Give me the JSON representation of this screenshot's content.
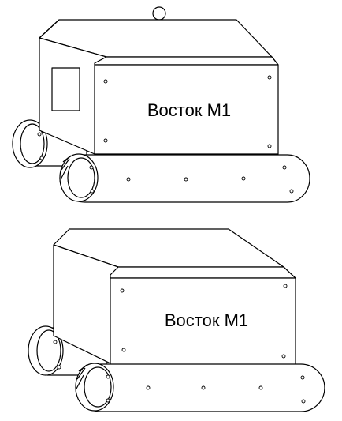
{
  "figures": [
    {
      "id": "robot-top",
      "label": "Восток М1",
      "has_hook": true,
      "has_window": true
    },
    {
      "id": "robot-bottom",
      "label": "Восток М1",
      "has_hook": false,
      "has_window": false
    }
  ],
  "colors": {
    "line": "#000000",
    "fill": "#ffffff"
  }
}
